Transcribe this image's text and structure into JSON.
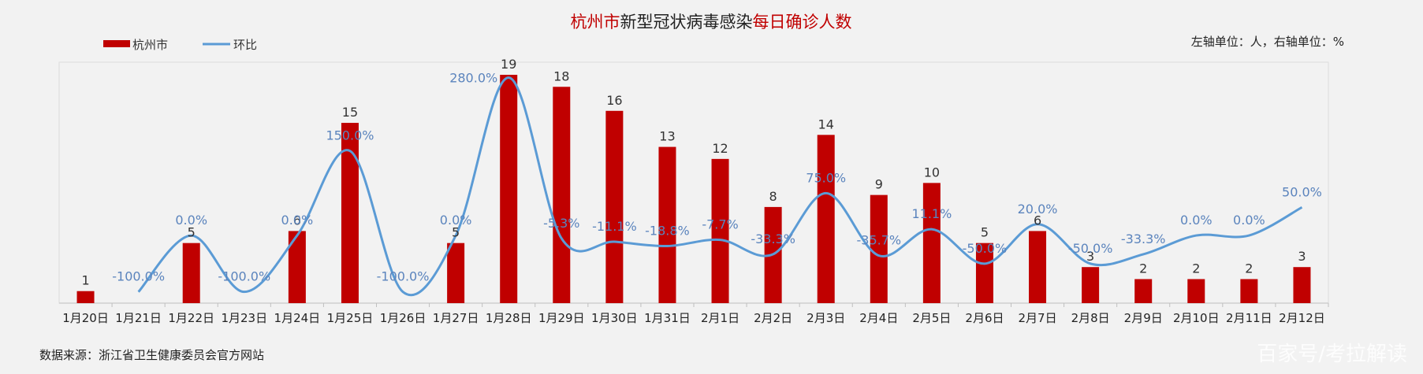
{
  "chart_data": {
    "type": "bar",
    "title_parts": [
      {
        "text": "杭州市",
        "color": "#c00000"
      },
      {
        "text": "新型冠状病毒感染",
        "color": "#222222"
      },
      {
        "text": "每日确诊人数",
        "color": "#c00000"
      }
    ],
    "categories": [
      "1月20日",
      "1月21日",
      "1月22日",
      "1月23日",
      "1月24日",
      "1月25日",
      "1月26日",
      "1月27日",
      "1月28日",
      "1月29日",
      "1月30日",
      "1月31日",
      "2月1日",
      "2月2日",
      "2月3日",
      "2月4日",
      "2月5日",
      "2月6日",
      "2月7日",
      "2月8日",
      "2月9日",
      "2月10日",
      "2月11日",
      "2月12日"
    ],
    "series": [
      {
        "name": "杭州市",
        "type": "bar",
        "color": "#c00000",
        "values": [
          1,
          0,
          5,
          0,
          6,
          15,
          0,
          5,
          19,
          18,
          16,
          13,
          12,
          8,
          14,
          9,
          10,
          5,
          6,
          3,
          2,
          2,
          2,
          3
        ],
        "labels": [
          "1",
          "",
          "5",
          "",
          "6",
          "15",
          "",
          "5",
          "19",
          "18",
          "16",
          "13",
          "12",
          "8",
          "14",
          "9",
          "10",
          "5",
          "6",
          "3",
          "2",
          "2",
          "2",
          "3"
        ]
      },
      {
        "name": "环比",
        "type": "line",
        "color": "#5b9bd5",
        "values": [
          null,
          -100.0,
          0.0,
          -100.0,
          0.0,
          150.0,
          -100.0,
          0.0,
          280.0,
          -5.3,
          -11.1,
          -18.8,
          -7.7,
          -33.3,
          75.0,
          -35.7,
          11.1,
          -50.0,
          20.0,
          -50.0,
          -33.3,
          0.0,
          0.0,
          50.0
        ],
        "labels": [
          "",
          "-100.0%",
          "0.0%",
          "-100.0%",
          "0.0%",
          "150.0%",
          "-100.0%",
          "0.0%",
          "280.0%",
          "-5.3%",
          "-11.1%",
          "-18.8%",
          "-7.7%",
          "-33.3%",
          "75.0%",
          "-35.7%",
          "11.1%",
          "-50.0%",
          "20.0%",
          "-50.0%",
          "-33.3%",
          "0.0%",
          "0.0%",
          "50.0%"
        ]
      }
    ],
    "ylim": [
      0,
      19
    ],
    "y2lim": [
      -120,
      285
    ],
    "grid": false,
    "legend": "top-left",
    "unit_note": "左轴单位：人，右轴单位：%",
    "source_note": "数据来源：浙江省卫生健康委员会官方网站"
  },
  "watermark": "百家号/考拉解读"
}
